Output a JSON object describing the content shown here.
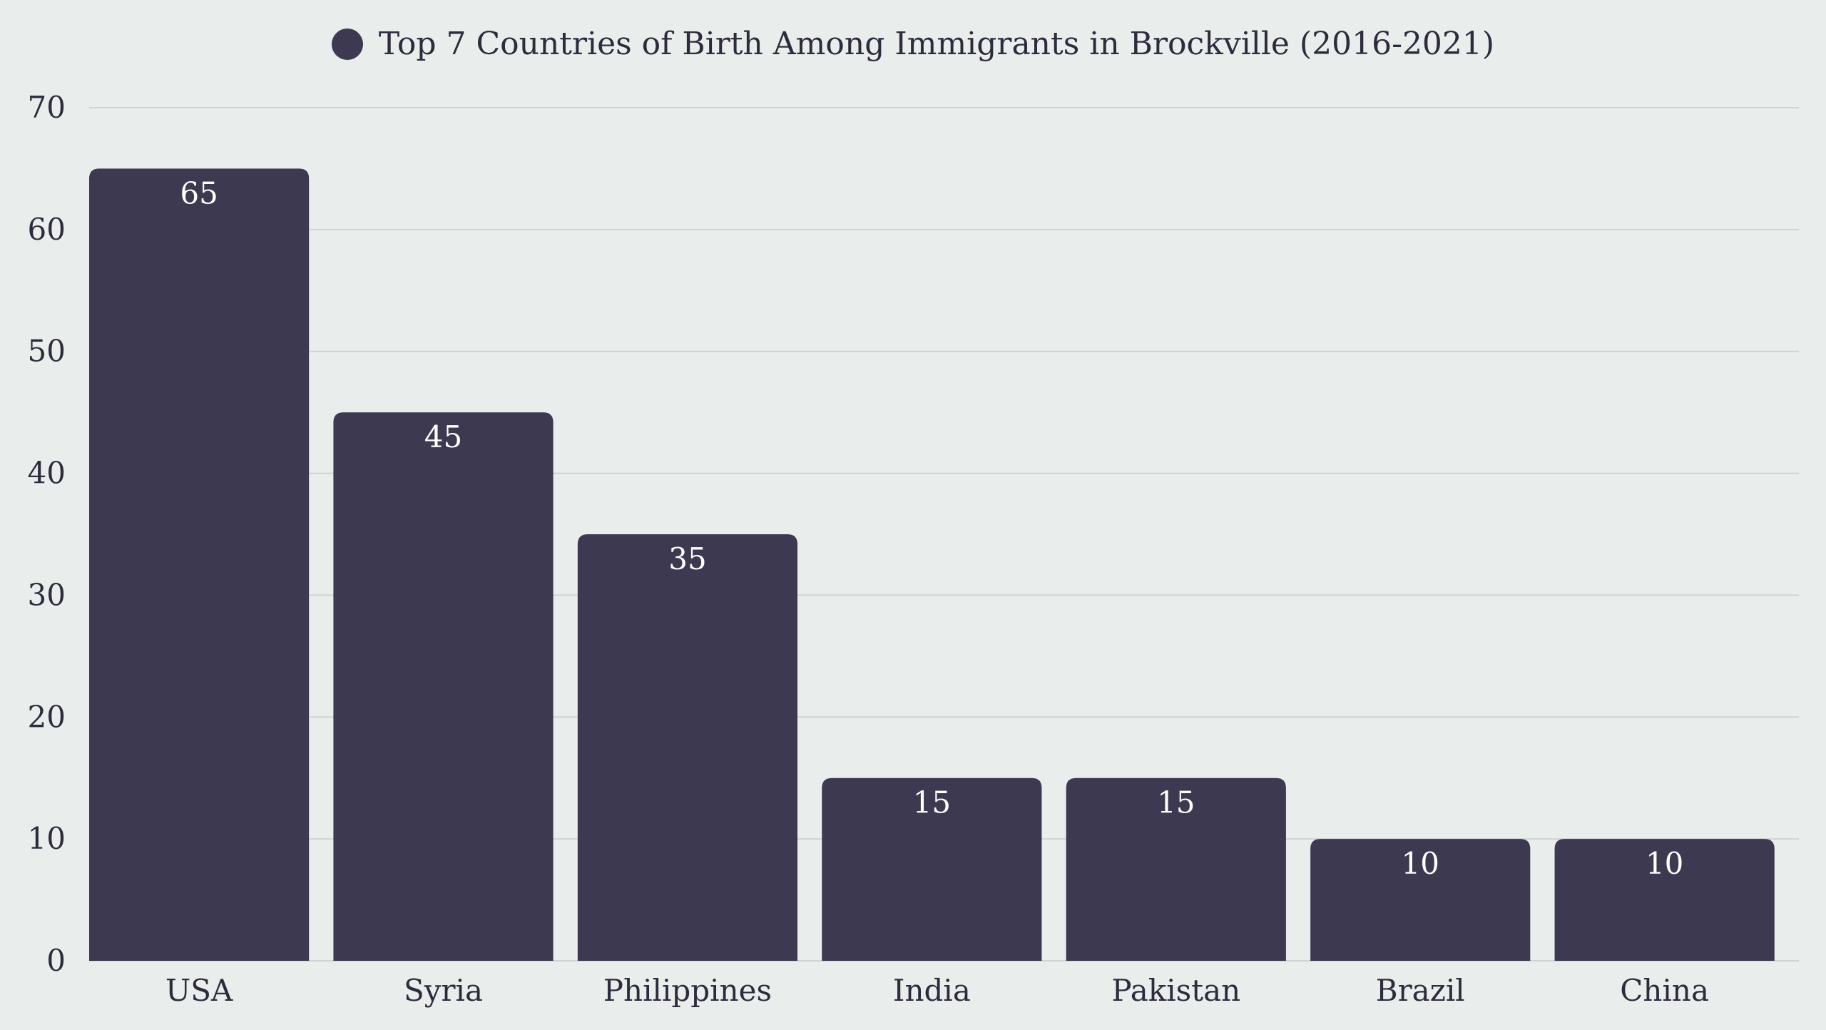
{
  "chart_data": {
    "type": "bar",
    "title": "",
    "xlabel": "",
    "ylabel": "",
    "legend": {
      "placement": "top-center",
      "entries": [
        "Top 7 Countries of Birth Among Immigrants in Brockville (2016-2021)"
      ]
    },
    "categories": [
      "USA",
      "Syria",
      "Philippines",
      "India",
      "Pakistan",
      "Brazil",
      "China"
    ],
    "series": [
      {
        "name": "Top 7 Countries of Birth Among Immigrants in Brockville (2016-2021)",
        "values": [
          65,
          45,
          35,
          15,
          15,
          10,
          10
        ]
      }
    ],
    "ylim": [
      0,
      70
    ],
    "yticks": [
      0,
      10,
      20,
      30,
      40,
      50,
      60,
      70
    ],
    "grid": true,
    "data_labels": true
  },
  "colors": {
    "background": "#e9eeec",
    "bar": "#3d3950",
    "grid": "#cfd4d2",
    "axis_text": "#2e2b3c",
    "bar_label": "#ffffff"
  }
}
